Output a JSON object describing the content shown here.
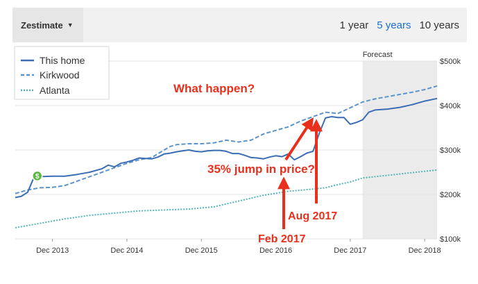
{
  "controls": {
    "dropdown_label": "Zestimate",
    "tabs": [
      {
        "label": "1 year"
      },
      {
        "label": "5 years",
        "active": true
      },
      {
        "label": "10 years"
      }
    ]
  },
  "annotations": {
    "question": "What happen?",
    "jump": "35% jump in price?",
    "feb": "Feb 2017",
    "aug": "Aug 2017"
  },
  "colors": {
    "this_home": "#3a6db5",
    "kirkwood": "#5b93cc",
    "atlanta": "#56b3b5",
    "annotation": "#e8301c",
    "forecast_bg": "#ebebeb",
    "marker": "#5db843"
  },
  "chart_data": {
    "type": "line",
    "x_axis": {
      "unit": "months since Jun 2013",
      "range": [
        0,
        68
      ],
      "ticks": [
        {
          "x": 6,
          "label": "Dec 2013"
        },
        {
          "x": 18,
          "label": "Dec 2014"
        },
        {
          "x": 30,
          "label": "Dec 2015"
        },
        {
          "x": 42,
          "label": "Dec 2016"
        },
        {
          "x": 54,
          "label": "Dec 2017"
        },
        {
          "x": 66,
          "label": "Dec 2018"
        }
      ]
    },
    "y_axis": {
      "range": [
        100000,
        500000
      ],
      "ticks": [
        {
          "y": 100000,
          "label": "$100k"
        },
        {
          "y": 200000,
          "label": "$200k"
        },
        {
          "y": 300000,
          "label": "$300k"
        },
        {
          "y": 400000,
          "label": "$400k"
        },
        {
          "y": 500000,
          "label": "$500k"
        }
      ]
    },
    "forecast": {
      "label": "Forecast",
      "start_x": 56,
      "end_x": 68
    },
    "legend_position": "top-left",
    "grid": true,
    "marker": {
      "x": 4,
      "y": 240000,
      "symbol": "$"
    },
    "series": [
      {
        "name": "This home",
        "style": "solid",
        "points": [
          [
            0,
            193000
          ],
          [
            1,
            196000
          ],
          [
            2,
            205000
          ],
          [
            3,
            238000
          ],
          [
            4,
            240000
          ],
          [
            6,
            241000
          ],
          [
            8,
            241000
          ],
          [
            10,
            245000
          ],
          [
            12,
            250000
          ],
          [
            14,
            258000
          ],
          [
            15,
            266000
          ],
          [
            16,
            262000
          ],
          [
            17,
            270000
          ],
          [
            18,
            273000
          ],
          [
            19,
            277000
          ],
          [
            20,
            282000
          ],
          [
            21,
            281000
          ],
          [
            22,
            280000
          ],
          [
            23,
            284000
          ],
          [
            24,
            291000
          ],
          [
            25,
            293000
          ],
          [
            26,
            296000
          ],
          [
            27,
            298000
          ],
          [
            28,
            300000
          ],
          [
            29,
            297000
          ],
          [
            30,
            296000
          ],
          [
            31,
            298000
          ],
          [
            32,
            299000
          ],
          [
            33,
            299000
          ],
          [
            34,
            297000
          ],
          [
            35,
            292000
          ],
          [
            36,
            292000
          ],
          [
            37,
            288000
          ],
          [
            38,
            283000
          ],
          [
            39,
            282000
          ],
          [
            40,
            280000
          ],
          [
            41,
            284000
          ],
          [
            42,
            287000
          ],
          [
            43,
            285000
          ],
          [
            44,
            291000
          ],
          [
            45,
            278000
          ],
          [
            46,
            285000
          ],
          [
            47,
            293000
          ],
          [
            48,
            297000
          ],
          [
            49,
            337000
          ],
          [
            50,
            372000
          ],
          [
            51,
            375000
          ],
          [
            52,
            373000
          ],
          [
            53,
            373000
          ],
          [
            54,
            358000
          ],
          [
            55,
            362000
          ],
          [
            56,
            368000
          ],
          [
            57,
            385000
          ],
          [
            58,
            390000
          ],
          [
            60,
            392000
          ],
          [
            62,
            396000
          ],
          [
            64,
            402000
          ],
          [
            66,
            410000
          ],
          [
            68,
            416000
          ]
        ]
      },
      {
        "name": "Kirkwood",
        "style": "dashed",
        "points": [
          [
            0,
            202000
          ],
          [
            2,
            210000
          ],
          [
            4,
            215000
          ],
          [
            6,
            216000
          ],
          [
            8,
            220000
          ],
          [
            10,
            230000
          ],
          [
            12,
            240000
          ],
          [
            14,
            250000
          ],
          [
            16,
            260000
          ],
          [
            18,
            270000
          ],
          [
            20,
            278000
          ],
          [
            22,
            283000
          ],
          [
            24,
            300000
          ],
          [
            25,
            308000
          ],
          [
            26,
            312000
          ],
          [
            28,
            314000
          ],
          [
            30,
            314000
          ],
          [
            32,
            316000
          ],
          [
            34,
            322000
          ],
          [
            36,
            318000
          ],
          [
            38,
            322000
          ],
          [
            40,
            336000
          ],
          [
            42,
            344000
          ],
          [
            44,
            352000
          ],
          [
            46,
            365000
          ],
          [
            48,
            375000
          ],
          [
            50,
            385000
          ],
          [
            52,
            382000
          ],
          [
            54,
            395000
          ],
          [
            56,
            408000
          ],
          [
            58,
            415000
          ],
          [
            60,
            420000
          ],
          [
            62,
            425000
          ],
          [
            64,
            430000
          ],
          [
            66,
            436000
          ],
          [
            68,
            444000
          ]
        ]
      },
      {
        "name": "Atlanta",
        "style": "dotted",
        "points": [
          [
            0,
            125000
          ],
          [
            4,
            135000
          ],
          [
            8,
            145000
          ],
          [
            12,
            153000
          ],
          [
            16,
            158000
          ],
          [
            20,
            163000
          ],
          [
            24,
            165000
          ],
          [
            28,
            167000
          ],
          [
            32,
            172000
          ],
          [
            36,
            185000
          ],
          [
            40,
            198000
          ],
          [
            44,
            207000
          ],
          [
            48,
            212000
          ],
          [
            50,
            215000
          ],
          [
            52,
            222000
          ],
          [
            54,
            228000
          ],
          [
            56,
            237000
          ],
          [
            60,
            243000
          ],
          [
            64,
            249000
          ],
          [
            68,
            255000
          ]
        ]
      }
    ]
  }
}
